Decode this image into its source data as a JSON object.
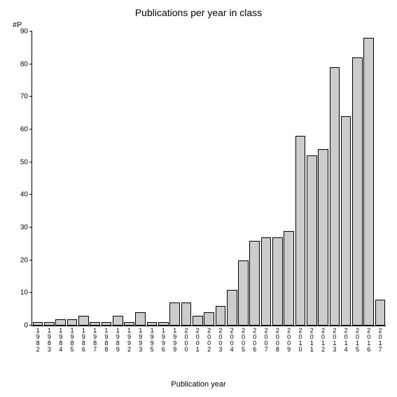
{
  "chart": {
    "type": "bar",
    "title": "Publications per year in class",
    "ylabel": "#P",
    "xlabel": "Publication year",
    "title_fontsize": 14,
    "label_fontsize": 11,
    "tick_fontsize": 10,
    "background_color": "#ffffff",
    "bar_fill": "#cccccc",
    "bar_border": "#000000",
    "axis_color": "#000000",
    "ylim": [
      0,
      90
    ],
    "ytick_step": 10,
    "categories": [
      "1982",
      "1983",
      "1984",
      "1985",
      "1986",
      "1987",
      "1988",
      "1989",
      "1992",
      "1993",
      "1995",
      "1996",
      "1999",
      "2000",
      "2001",
      "2002",
      "2003",
      "2004",
      "2005",
      "2006",
      "2007",
      "2008",
      "2009",
      "2010",
      "2011",
      "2012",
      "2013",
      "2014",
      "2015",
      "2016",
      "2017"
    ],
    "values": [
      1,
      1,
      2,
      2,
      3,
      1,
      1,
      3,
      1,
      4,
      1,
      1,
      7,
      7,
      3,
      4,
      6,
      11,
      20,
      26,
      27,
      27,
      29,
      58,
      52,
      54,
      79,
      64,
      82,
      88,
      8
    ],
    "bar_width_ratio": 0.9
  }
}
